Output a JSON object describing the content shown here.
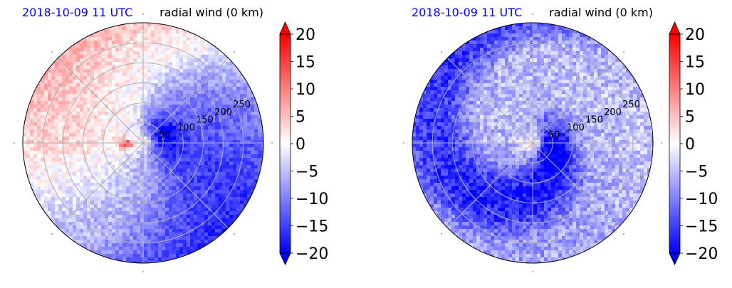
{
  "chart_data": [
    {
      "type": "heatmap",
      "projection": "polar",
      "title_left": "2018-10-09 11 UTC",
      "title_right": "radial wind (0 km)",
      "title_left_color": "#0000ff",
      "radial_tick_labels": [
        "50",
        "100",
        "150",
        "200",
        "250"
      ],
      "rlim": [
        0,
        300
      ],
      "grid": true,
      "colorbar": {
        "min": -20,
        "max": 20,
        "extend": "both",
        "ticks": [
          "20",
          "15",
          "10",
          "5",
          "0",
          "−5",
          "−10",
          "−15",
          "−20"
        ],
        "colors": [
          "#0000ff",
          "#ffffff",
          "#ff0000"
        ]
      },
      "pattern": {
        "neg_dir_deg": 25,
        "neg_amp": 12,
        "pos_dir_deg": 190,
        "pos_amp": 6,
        "base": -2,
        "south_shift": -4,
        "inner_boost": -5,
        "hotspot_dir_deg": 185,
        "hotspot_r": 40,
        "hotspot_value": 14,
        "spiral": 0.5,
        "noise": 3
      }
    },
    {
      "type": "heatmap",
      "projection": "polar",
      "title_left": "2018-10-09 11 UTC",
      "title_right": "radial wind (0 km)",
      "title_left_color": "#0000ff",
      "radial_tick_labels": [
        "50",
        "100",
        "150",
        "200",
        "250"
      ],
      "rlim": [
        0,
        300
      ],
      "grid": true,
      "colorbar": {
        "min": -20,
        "max": 20,
        "extend": "both",
        "ticks": [
          "20",
          "15",
          "10",
          "5",
          "0",
          "−5",
          "−10",
          "−15",
          "−20"
        ],
        "colors": [
          "#0000ff",
          "#ffffff",
          "#ff0000"
        ]
      },
      "pattern": {
        "neg_dir_deg": 10,
        "neg_amp": 10,
        "pos_dir_deg": 190,
        "pos_amp": 1,
        "base": -6,
        "south_shift": -2,
        "inner_boost": -8,
        "hotspot_dir_deg": 170,
        "hotspot_r": 30,
        "hotspot_value": 5,
        "spiral": 2.0,
        "noise": 4
      }
    }
  ]
}
